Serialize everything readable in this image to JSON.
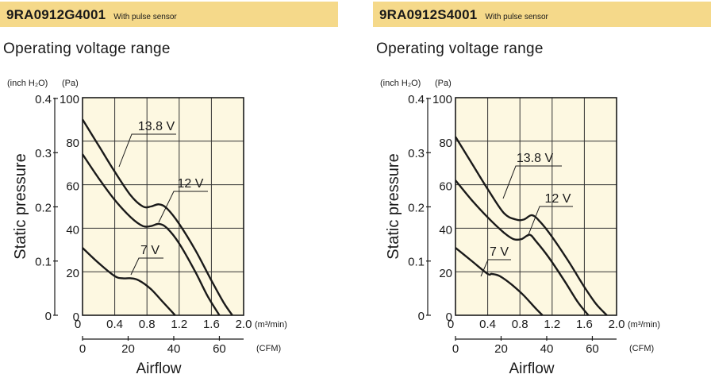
{
  "charts": [
    {
      "model": "9RA0912G4001",
      "note": "With pulse sensor",
      "subtitle": "Operating voltage range",
      "y_axis_label": "Static pressure",
      "y_unit_inch": "(inch H₂O)",
      "y_unit_pa": "(Pa)",
      "x_axis_label": "Airflow",
      "x_unit_m3": "(m³/min)",
      "x_unit_cfm": "(CFM)",
      "colors": {
        "plot_bg": "#fdf8e1",
        "header": "#f5d98a",
        "line": "#1a1a1a"
      }
    },
    {
      "model": "9RA0912S4001",
      "note": "With pulse sensor",
      "subtitle": "Operating voltage range",
      "y_axis_label": "Static pressure",
      "y_unit_inch": "(inch H₂O)",
      "y_unit_pa": "(Pa)",
      "x_axis_label": "Airflow",
      "x_unit_m3": "(m³/min)",
      "x_unit_cfm": "(CFM)",
      "colors": {
        "plot_bg": "#fdf8e1",
        "header": "#f5d98a",
        "line": "#1a1a1a"
      }
    }
  ],
  "chart_data": [
    {
      "type": "line",
      "xlabel": "Airflow",
      "ylabel": "Static pressure",
      "x_unit": "m³/min",
      "y_unit": "Pa",
      "xlim": [
        0,
        2.0
      ],
      "ylim": [
        0,
        100
      ],
      "x_ticks": [
        "0",
        "0.4",
        "0.8",
        "1.2",
        "1.6",
        "2.0"
      ],
      "y_ticks": [
        "0",
        "20",
        "40",
        "60",
        "80",
        "100"
      ],
      "y_ticks_inch": [
        "0",
        "0.1",
        "0.2",
        "0.3",
        "0.4"
      ],
      "cfm_ticks": [
        "0",
        "20",
        "40",
        "60"
      ],
      "grid": true,
      "series": [
        {
          "name": "13.8 V",
          "x": [
            0,
            0.2,
            0.4,
            0.6,
            0.75,
            0.85,
            0.95,
            1.05,
            1.2,
            1.4,
            1.6,
            1.75,
            1.86
          ],
          "y": [
            90,
            78,
            66,
            55,
            50,
            50,
            51,
            49,
            42,
            30,
            16,
            6,
            0
          ]
        },
        {
          "name": "12 V",
          "x": [
            0,
            0.2,
            0.4,
            0.6,
            0.75,
            0.85,
            0.95,
            1.05,
            1.2,
            1.4,
            1.55,
            1.7
          ],
          "y": [
            74,
            63,
            53,
            45,
            41,
            41,
            42,
            40,
            33,
            20,
            9,
            0
          ]
        },
        {
          "name": "7 V",
          "x": [
            0,
            0.2,
            0.4,
            0.5,
            0.6,
            0.7,
            0.85,
            1.0,
            1.15
          ],
          "y": [
            31,
            24,
            18,
            17,
            17,
            16,
            12,
            6,
            0
          ]
        }
      ]
    },
    {
      "type": "line",
      "xlabel": "Airflow",
      "ylabel": "Static pressure",
      "x_unit": "m³/min",
      "y_unit": "Pa",
      "xlim": [
        0,
        2.0
      ],
      "ylim": [
        0,
        100
      ],
      "x_ticks": [
        "0",
        "0.4",
        "0.8",
        "1.2",
        "1.6",
        "2.0"
      ],
      "y_ticks": [
        "0",
        "20",
        "40",
        "60",
        "80",
        "100"
      ],
      "y_ticks_inch": [
        "0",
        "0.1",
        "0.2",
        "0.3",
        "0.4"
      ],
      "cfm_ticks": [
        "0",
        "20",
        "40",
        "60"
      ],
      "grid": true,
      "series": [
        {
          "name": "13.8 V",
          "x": [
            0,
            0.2,
            0.4,
            0.6,
            0.75,
            0.85,
            0.95,
            1.05,
            1.2,
            1.4,
            1.6,
            1.75,
            1.88
          ],
          "y": [
            82,
            70,
            58,
            47,
            44,
            44,
            46,
            43,
            36,
            25,
            13,
            5,
            0
          ]
        },
        {
          "name": "12 V",
          "x": [
            0,
            0.2,
            0.4,
            0.6,
            0.72,
            0.82,
            0.92,
            1.0,
            1.15,
            1.35,
            1.52,
            1.65
          ],
          "y": [
            62,
            53,
            45,
            38,
            35,
            35,
            37,
            34,
            27,
            16,
            6,
            0
          ]
        },
        {
          "name": "7 V",
          "x": [
            0,
            0.2,
            0.4,
            0.45,
            0.55,
            0.7,
            0.85,
            1.0,
            1.08
          ],
          "y": [
            31,
            25,
            19,
            19,
            18,
            14,
            9,
            3,
            0
          ]
        }
      ]
    }
  ]
}
